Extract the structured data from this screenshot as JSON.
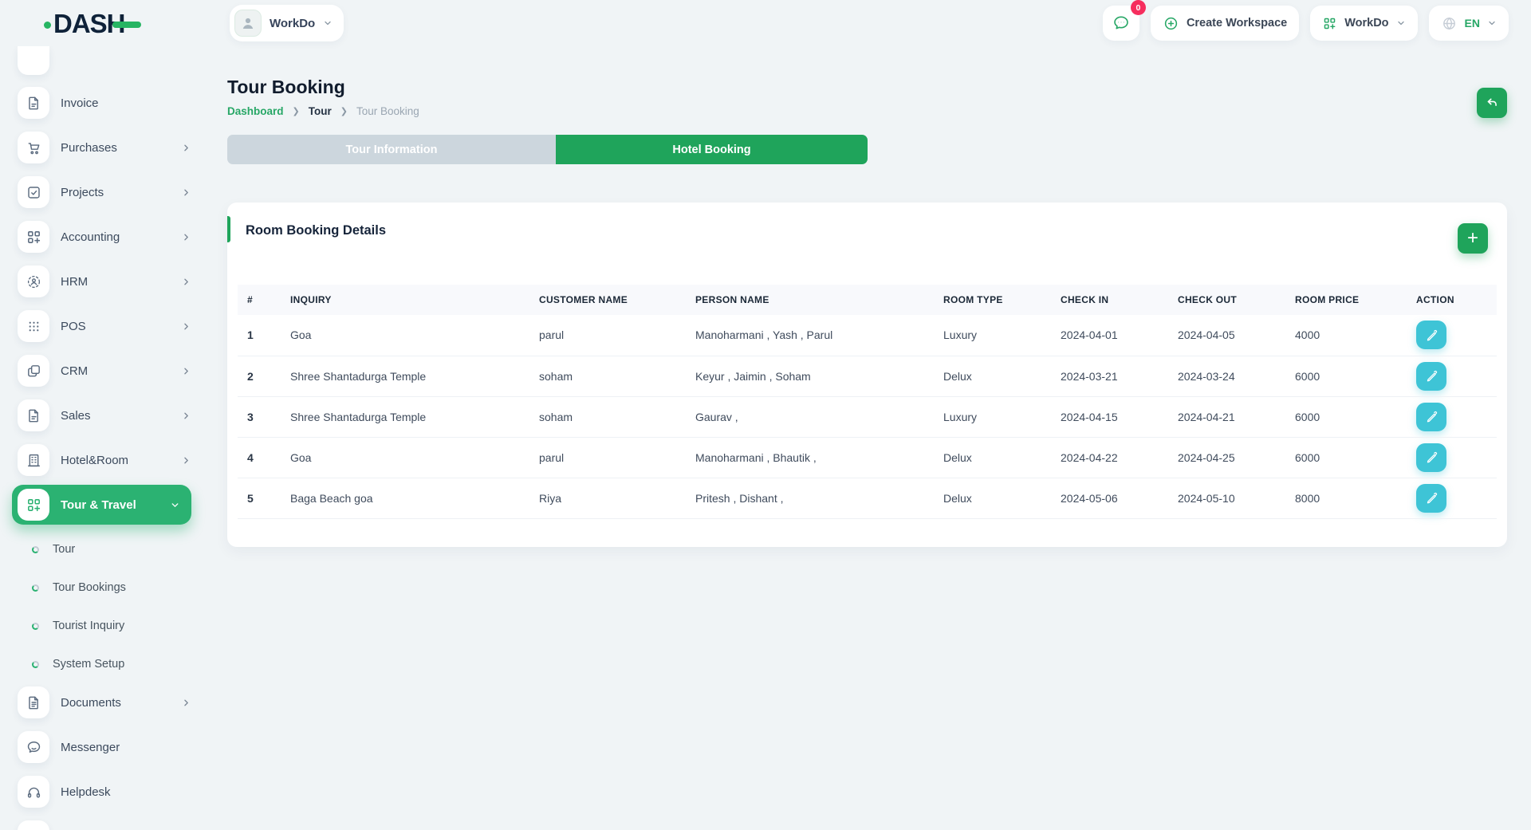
{
  "app": {
    "logo_text": "DASH"
  },
  "header": {
    "workspace": {
      "label": "WorkDo"
    },
    "messages": {
      "badge": "0"
    },
    "create_workspace": {
      "label": "Create Workspace"
    },
    "workdo_menu": {
      "label": "WorkDo"
    },
    "language": {
      "label": "EN"
    }
  },
  "sidebar": {
    "items": [
      {
        "label": "Invoice",
        "icon": "invoice",
        "chevron": false
      },
      {
        "label": "Purchases",
        "icon": "cart",
        "chevron": true
      },
      {
        "label": "Projects",
        "icon": "projects",
        "chevron": true
      },
      {
        "label": "Accounting",
        "icon": "grid-plus",
        "chevron": true
      },
      {
        "label": "HRM",
        "icon": "hrm",
        "chevron": true
      },
      {
        "label": "POS",
        "icon": "dots-grid",
        "chevron": true
      },
      {
        "label": "CRM",
        "icon": "copy",
        "chevron": true
      },
      {
        "label": "Sales",
        "icon": "file",
        "chevron": true
      },
      {
        "label": "Hotel&Room",
        "icon": "building",
        "chevron": true
      },
      {
        "label": "Tour & Travel",
        "icon": "grid-plus",
        "chevron": true,
        "active": true,
        "submenu": [
          "Tour",
          "Tour Bookings",
          "Tourist Inquiry",
          "System Setup"
        ]
      },
      {
        "label": "Documents",
        "icon": "document",
        "chevron": true
      },
      {
        "label": "Messenger",
        "icon": "chat",
        "chevron": false
      },
      {
        "label": "Helpdesk",
        "icon": "headset",
        "chevron": false
      }
    ]
  },
  "page": {
    "title": "Tour Booking",
    "breadcrumb": {
      "items": [
        "Dashboard",
        "Tour",
        "Tour Booking"
      ]
    },
    "tabs": [
      {
        "label": "Tour Information",
        "active": false
      },
      {
        "label": "Hotel Booking",
        "active": true
      }
    ]
  },
  "card": {
    "title": "Room Booking Details",
    "add_label": "+"
  },
  "table": {
    "columns": [
      "#",
      "INQUIRY",
      "CUSTOMER NAME",
      "PERSON NAME",
      "ROOM TYPE",
      "CHECK IN",
      "CHECK OUT",
      "ROOM PRICE",
      "ACTION"
    ],
    "rows": [
      {
        "num": "1",
        "inquiry": "Goa",
        "customer": "parul",
        "person": "Manoharmani , Yash , Parul",
        "room_type": "Luxury",
        "check_in": "2024-04-01",
        "check_out": "2024-04-05",
        "price": "4000"
      },
      {
        "num": "2",
        "inquiry": "Shree Shantadurga Temple",
        "customer": "soham",
        "person": "Keyur , Jaimin , Soham",
        "room_type": "Delux",
        "check_in": "2024-03-21",
        "check_out": "2024-03-24",
        "price": "6000"
      },
      {
        "num": "3",
        "inquiry": "Shree Shantadurga Temple",
        "customer": "soham",
        "person": "Gaurav ,",
        "room_type": "Luxury",
        "check_in": "2024-04-15",
        "check_out": "2024-04-21",
        "price": "6000"
      },
      {
        "num": "4",
        "inquiry": "Goa",
        "customer": "parul",
        "person": "Manoharmani , Bhautik ,",
        "room_type": "Delux",
        "check_in": "2024-04-22",
        "check_out": "2024-04-25",
        "price": "6000"
      },
      {
        "num": "5",
        "inquiry": "Baga Beach goa",
        "customer": "Riya",
        "person": "Pritesh , Dishant ,",
        "room_type": "Delux",
        "check_in": "2024-05-06",
        "check_out": "2024-05-10",
        "price": "8000"
      }
    ]
  },
  "colors": {
    "primary_green": "#1fa45b",
    "sidebar_active_green": "#2bb272",
    "teal_action": "#3ec4d6",
    "badge_pink": "#f62e5e",
    "tab_inactive": "#ccd6dd",
    "text_dark": "#1f2c3d",
    "text_muted": "#9aa6b2",
    "page_bg": "#f0f4f6"
  }
}
